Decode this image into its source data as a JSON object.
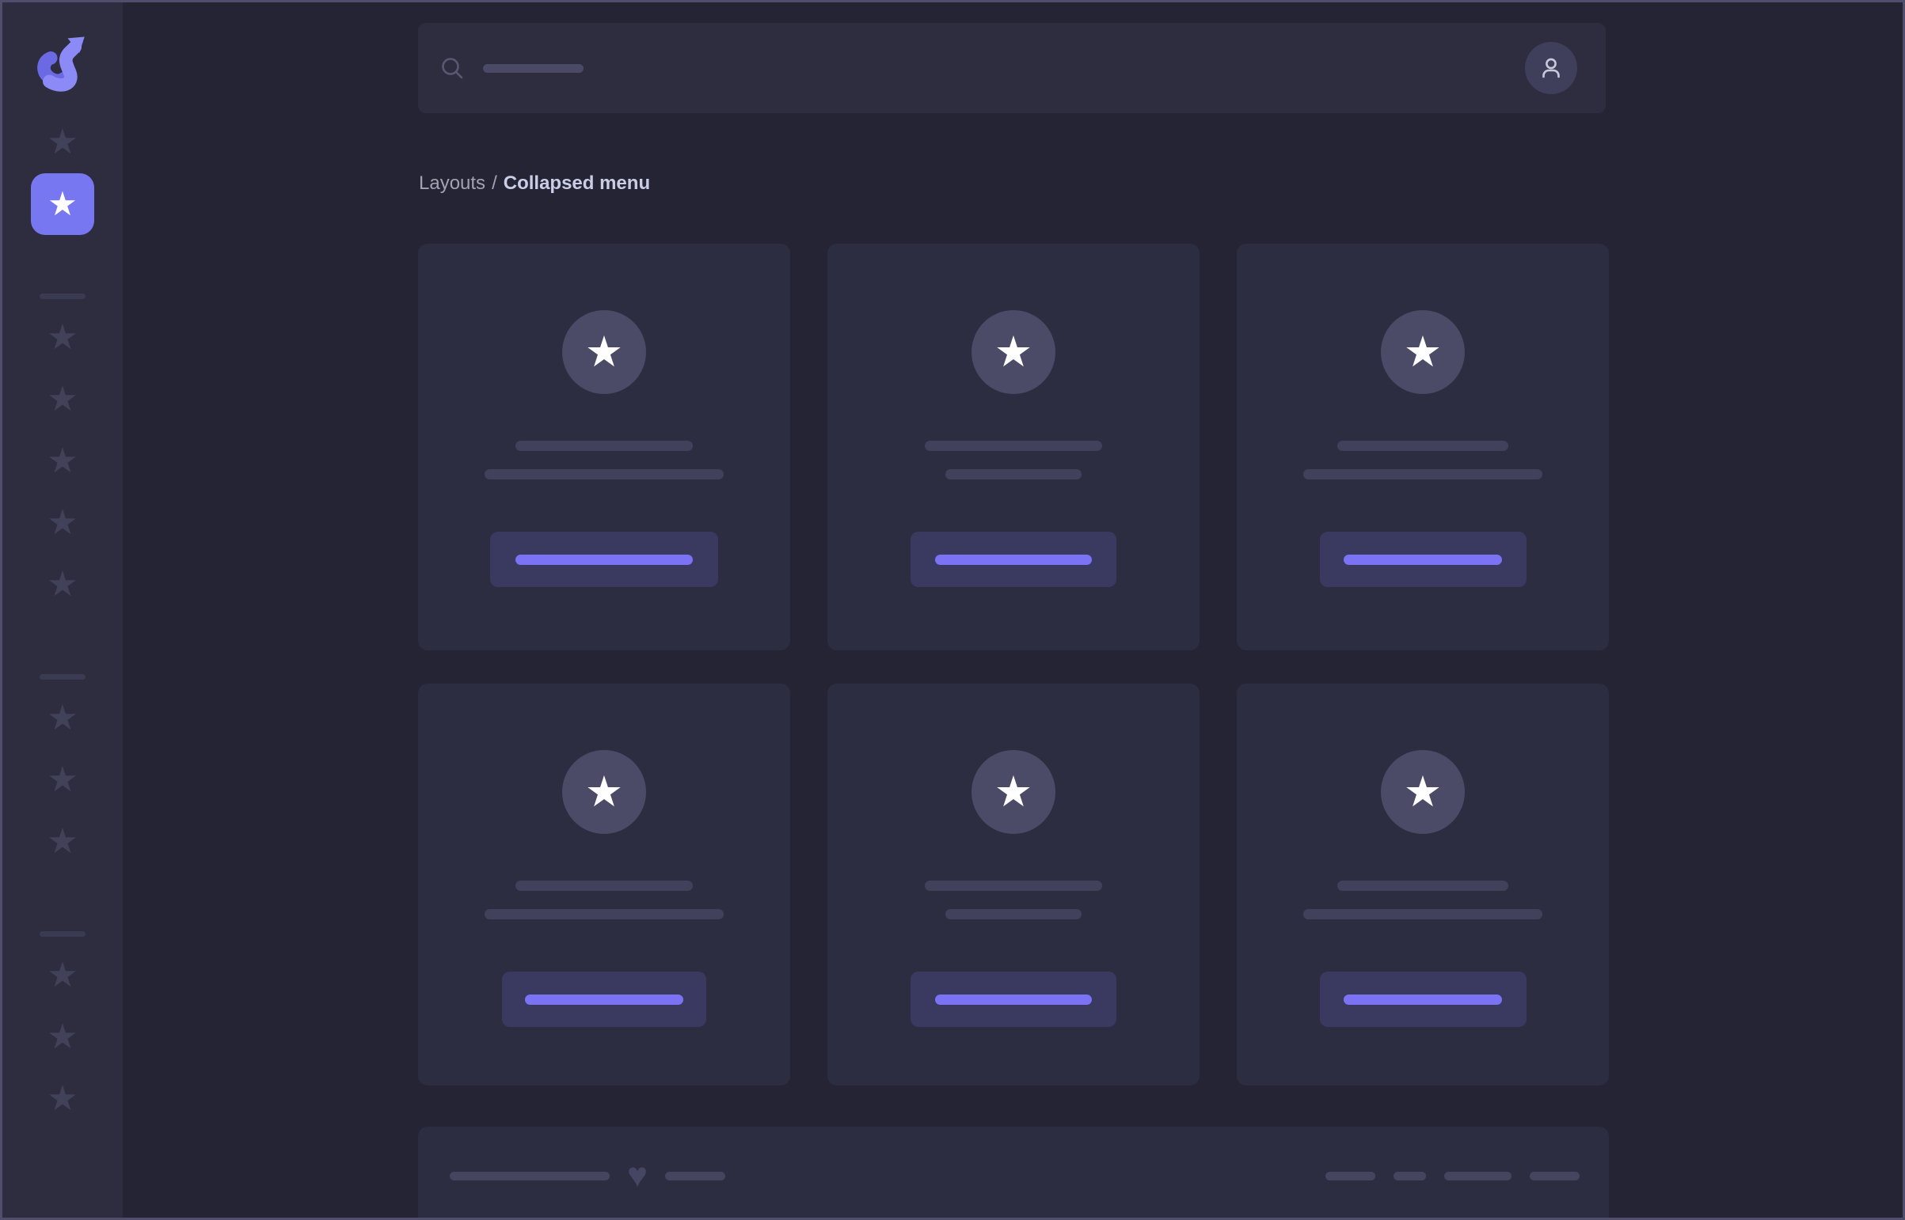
{
  "breadcrumb": {
    "parent": "Layouts",
    "separator": "/",
    "current": "Collapsed menu"
  },
  "sidebar": {
    "logo": "s-arrow-logo",
    "items": [
      {
        "type": "star"
      },
      {
        "type": "active"
      },
      {
        "type": "divider"
      },
      {
        "type": "star"
      },
      {
        "type": "star"
      },
      {
        "type": "star"
      },
      {
        "type": "star"
      },
      {
        "type": "star"
      },
      {
        "type": "divider"
      },
      {
        "type": "star"
      },
      {
        "type": "star"
      },
      {
        "type": "star"
      },
      {
        "type": "divider"
      },
      {
        "type": "star"
      },
      {
        "type": "star"
      },
      {
        "type": "star"
      }
    ]
  },
  "search": {
    "icon": "search-icon",
    "placeholder_width": 127,
    "avatar_icon": "user-icon"
  },
  "cards": [
    {
      "icon": "star",
      "title_w": 224,
      "subtitle_w": 302,
      "button_w": 288,
      "button_line_w": 224
    },
    {
      "icon": "star",
      "title_w": 224,
      "subtitle_w": 172,
      "button_w": 260,
      "button_line_w": 198
    },
    {
      "icon": "star",
      "title_w": 216,
      "subtitle_w": 302,
      "button_w": 261,
      "button_line_w": 200
    },
    {
      "icon": "star",
      "title_w": 224,
      "subtitle_w": 302,
      "button_w": 258,
      "button_line_w": 200
    },
    {
      "icon": "star",
      "title_w": 224,
      "subtitle_w": 172,
      "button_w": 260,
      "button_line_w": 198
    },
    {
      "icon": "star",
      "title_w": 216,
      "subtitle_w": 302,
      "button_w": 261,
      "button_line_w": 200
    }
  ],
  "footer": {
    "left_lines": [
      202,
      76
    ],
    "heart_icon": "heart-icon",
    "right_lines": [
      63,
      41,
      85,
      63
    ]
  },
  "icons": {
    "star": "★",
    "heart": "♥"
  },
  "colors": {
    "border": "#4F4F6D",
    "bg": "#242434",
    "panel": "#2D2D3F",
    "card": "#2D2D41",
    "circle": "#4B4B68",
    "line": "#41415C",
    "divider": "#3A3A52",
    "star_muted": "#41415A",
    "accent": "#7877F2",
    "accent_bright": "#7B73F3",
    "button_bg": "#3A3A60",
    "icon_muted": "#585873",
    "avatar_bg": "#3F3F5B",
    "avatar_icon": "#C9C9DB",
    "text_muted": "#A2A2B5",
    "text_bright": "#C9CDE6",
    "heart": "#454564",
    "footer_line": "#45455F",
    "logo_light": "#8B8AF6",
    "logo_dark": "#6B6AE4"
  }
}
